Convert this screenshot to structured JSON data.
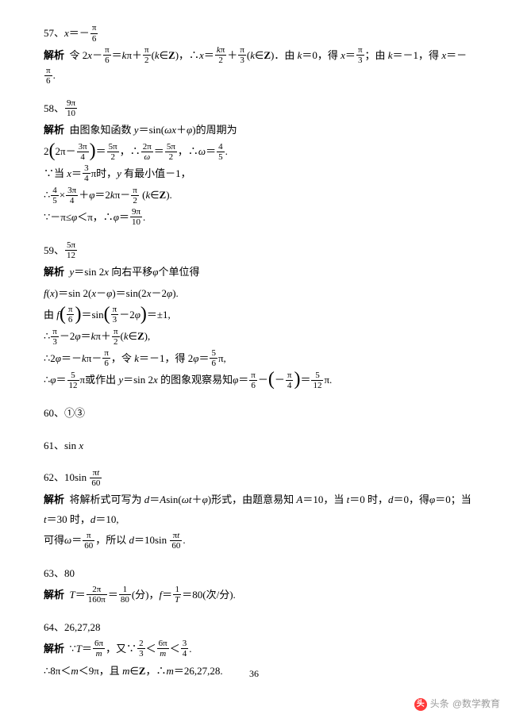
{
  "problems": [
    {
      "num": "57",
      "answer_html": "<i>x</i>＝－<span class='frac'><span class='num'>π</span><span class='den'>6</span></span>",
      "lines": [
        "<span class='label-bold' data-name='solution-label' data-interactable='false'>解析</span>&nbsp;&nbsp;令 2<i>x</i>－<span class='frac'><span class='num'>π</span><span class='den'>6</span></span>＝<i>k</i>π＋<span class='frac'><span class='num'>π</span><span class='den'>2</span></span>(<i>k</i>∈<b>Z</b>)，∴<i>x</i>＝<span class='frac'><span class='num'><i>k</i>π</span><span class='den'>2</span></span>＋<span class='frac'><span class='num'>π</span><span class='den'>3</span></span>(<i>k</i>∈<b>Z</b>)．由 <i>k</i>＝0，得 <i>x</i>＝<span class='frac'><span class='num'>π</span><span class='den'>3</span></span>；由 <i>k</i>＝－1，得 <i>x</i>＝－<span class='frac'><span class='num'>π</span><span class='den'>6</span></span>."
      ]
    },
    {
      "num": "58",
      "answer_html": "<span class='frac'><span class='num'>9π</span><span class='den'>10</span></span>",
      "lines": [
        "<span class='label-bold' data-name='solution-label' data-interactable='false'>解析</span>&nbsp;&nbsp;由图象知函数 <i>y</i>＝sin(<i>ωx</i>＋<i>φ</i>)的周期为",
        "2<span class='big-paren'>(</span>2π－<span class='frac'><span class='num'>3π</span><span class='den'>4</span></span><span class='big-paren'>)</span>＝<span class='frac'><span class='num'>5π</span><span class='den'>2</span></span>，∴<span class='frac'><span class='num'>2π</span><span class='den'><i>ω</i></span></span>＝<span class='frac'><span class='num'>5π</span><span class='den'>2</span></span>，∴<i>ω</i>＝<span class='frac'><span class='num'>4</span><span class='den'>5</span></span>.",
        "∵当 <i>x</i>＝<span class='frac'><span class='num'>3</span><span class='den'>4</span></span>π时，<i>y</i> 有最小值－1，",
        "∴<span class='frac'><span class='num'>4</span><span class='den'>5</span></span>×<span class='frac'><span class='num'>3π</span><span class='den'>4</span></span>＋<i>φ</i>＝2<i>k</i>π－<span class='frac'><span class='num'>π</span><span class='den'>2</span></span> (<i>k</i>∈<b>Z</b>).",
        "∵－π≤<i>φ</i>＜π，∴<i>φ</i>＝<span class='frac'><span class='num'>9π</span><span class='den'>10</span></span>."
      ]
    },
    {
      "num": "59",
      "answer_html": "<span class='frac'><span class='num'>5π</span><span class='den'>12</span></span>",
      "lines": [
        "<span class='label-bold' data-name='solution-label' data-interactable='false'>解析</span>&nbsp;&nbsp;<i>y</i>＝sin 2<i>x</i> 向右平移<i>φ</i>个单位得",
        "<i>f</i>(<i>x</i>)＝sin 2(<i>x</i>－<i>φ</i>)＝sin(2<i>x</i>－2<i>φ</i>).",
        "由 <i>f</i><span class='big-paren'>(</span><span class='frac'><span class='num'>π</span><span class='den'>6</span></span><span class='big-paren'>)</span>＝sin<span class='big-paren'>(</span><span class='frac'><span class='num'>π</span><span class='den'>3</span></span>－2<i>φ</i><span class='big-paren'>)</span>＝±1,",
        "∴<span class='frac'><span class='num'>π</span><span class='den'>3</span></span>－2<i>φ</i>＝<i>k</i>π＋<span class='frac'><span class='num'>π</span><span class='den'>2</span></span>(<i>k</i>∈<b>Z</b>),",
        "∴2<i>φ</i>＝－<i>k</i>π－<span class='frac'><span class='num'>π</span><span class='den'>6</span></span>，令 <i>k</i>＝－1，得 2<i>φ</i>＝<span class='frac'><span class='num'>5</span><span class='den'>6</span></span>π,",
        "∴<i>φ</i>＝<span class='frac'><span class='num'>5</span><span class='den'>12</span></span>π或作出 <i>y</i>＝sin 2<i>x</i> 的图象观察易知<i>φ</i>＝<span class='frac'><span class='num'>π</span><span class='den'>6</span></span>－<span class='big-paren'>(</span>－<span class='frac'><span class='num'>π</span><span class='den'>4</span></span><span class='big-paren'>)</span>＝<span class='frac'><span class='num'>5</span><span class='den'>12</span></span>π."
      ]
    },
    {
      "num": "60",
      "answer_html": "①③",
      "lines": []
    },
    {
      "num": "61",
      "answer_html": "sin <i>x</i>",
      "lines": []
    },
    {
      "num": "62",
      "answer_html": "10sin <span class='frac'><span class='num'>π<i>t</i></span><span class='den'>60</span></span>",
      "lines": [
        "<span class='label-bold' data-name='solution-label' data-interactable='false'>解析</span>&nbsp;&nbsp;将解析式可写为 <i>d</i>＝<i>A</i>sin(<i>ωt</i>＋<i>φ</i>)形式，由题意易知 <i>A</i>＝10，当 <i>t</i>＝0 时，<i>d</i>＝0，得<i>φ</i>＝0；当 <i>t</i>＝30 时，<i>d</i>＝10,",
        "可得<i>ω</i>＝<span class='frac'><span class='num'>π</span><span class='den'>60</span></span>，所以 <i>d</i>＝10sin <span class='frac'><span class='num'>π<i>t</i></span><span class='den'>60</span></span>."
      ]
    },
    {
      "num": "63",
      "answer_html": "80",
      "lines": [
        "<span class='label-bold' data-name='solution-label' data-interactable='false'>解析</span>&nbsp;&nbsp;<i>T</i>＝<span class='frac'><span class='num'>2π</span><span class='den'>160π</span></span>＝<span class='frac'><span class='num'>1</span><span class='den'>80</span></span>(分)，<i>f</i>＝<span class='frac'><span class='num'>1</span><span class='den'><i>T</i></span></span>＝80(次/分)."
      ]
    },
    {
      "num": "64",
      "answer_html": "26,27,28",
      "lines": [
        "<span class='label-bold' data-name='solution-label' data-interactable='false'>解析</span>&nbsp;&nbsp;∵<i>T</i>＝<span class='frac'><span class='num'>6π</span><span class='den'><i>m</i></span></span>，又∵<span class='frac'><span class='num'>2</span><span class='den'>3</span></span>＜<span class='frac'><span class='num'>6π</span><span class='den'><i>m</i></span></span>＜<span class='frac'><span class='num'>3</span><span class='den'>4</span></span>.",
        "∴8π＜<i>m</i>＜9π，且 <i>m</i>∈<b>Z</b>，∴<i>m</i>＝26,27,28."
      ]
    }
  ],
  "page_number": "36",
  "watermark_source": "头条",
  "watermark_author": "@数学教育"
}
